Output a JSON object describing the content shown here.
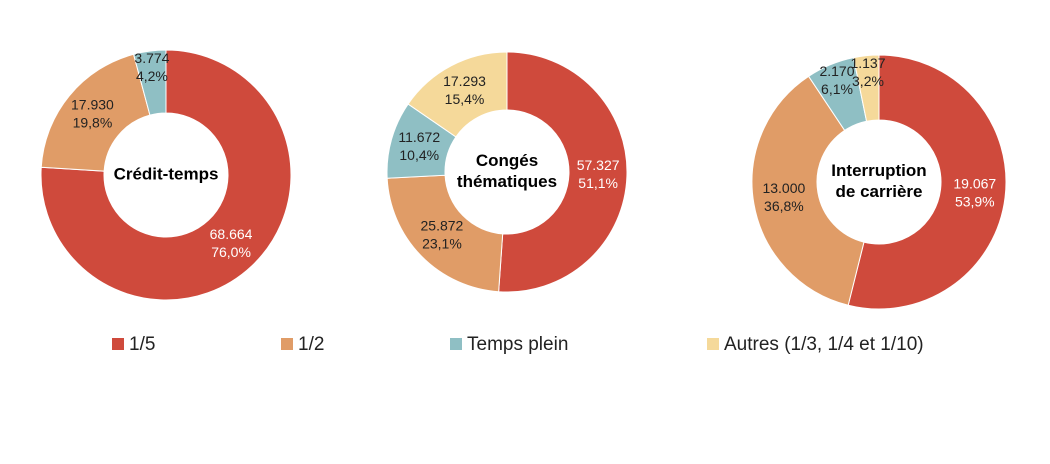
{
  "chart_data": [
    {
      "type": "donut",
      "title": [
        "Crédit-temps"
      ],
      "categories": [
        "1/5",
        "1/2",
        "Temps plein"
      ],
      "values": [
        68664,
        17930,
        3774
      ],
      "value_labels": [
        "68.664",
        "17.930",
        "3.774"
      ],
      "percents": [
        76.0,
        19.8,
        4.2
      ],
      "percent_labels": [
        "76,0%",
        "19,8%",
        "4,2%"
      ],
      "colors": [
        "#cf4a3c",
        "#e09c67",
        "#8fbfc4"
      ]
    },
    {
      "type": "donut",
      "title": [
        "Congés",
        "thématiques"
      ],
      "categories": [
        "1/5",
        "1/2",
        "Temps plein",
        "Autres (1/3, 1/4 et 1/10)"
      ],
      "values": [
        57327,
        25872,
        11672,
        17293
      ],
      "value_labels": [
        "57.327",
        "25.872",
        "11.672",
        "17.293"
      ],
      "percents": [
        51.1,
        23.1,
        10.4,
        15.4
      ],
      "percent_labels": [
        "51,1%",
        "23,1%",
        "10,4%",
        "15,4%"
      ],
      "colors": [
        "#cf4a3c",
        "#e09c67",
        "#8fbfc4",
        "#f5d99a"
      ]
    },
    {
      "type": "donut",
      "title": [
        "Interruption",
        "de carrière"
      ],
      "categories": [
        "1/5",
        "1/2",
        "Temps plein",
        "Autres (1/3, 1/4 et 1/10)"
      ],
      "values": [
        19067,
        13000,
        2170,
        1137
      ],
      "value_labels": [
        "19.067",
        "13.000",
        "2.170",
        "1.137"
      ],
      "percents": [
        53.9,
        36.8,
        6.1,
        3.2
      ],
      "percent_labels": [
        "53,9%",
        "36,8%",
        "6,1%",
        "3,2%"
      ],
      "colors": [
        "#cf4a3c",
        "#e09c67",
        "#8fbfc4",
        "#f5d99a"
      ]
    }
  ],
  "legend": [
    {
      "name": "1/5",
      "color": "#cf4a3c"
    },
    {
      "name": "1/2",
      "color": "#e09c67"
    },
    {
      "name": "Temps plein",
      "color": "#8fbfc4"
    },
    {
      "name": "Autres (1/3, 1/4 et 1/10)",
      "color": "#f5d99a"
    }
  ]
}
